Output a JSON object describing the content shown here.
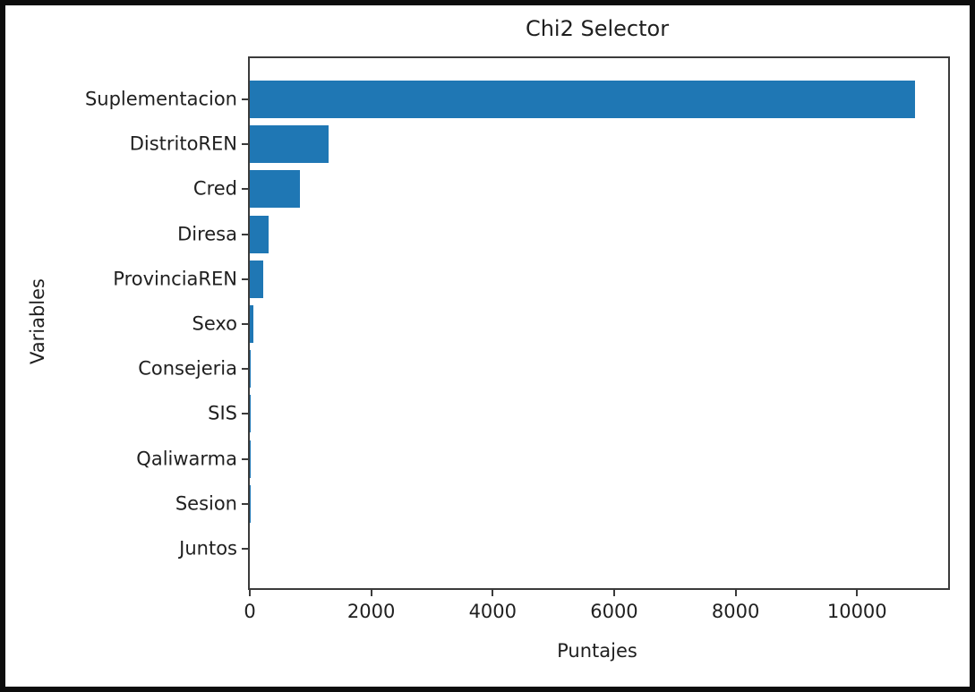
{
  "chart_data": {
    "type": "bar",
    "orientation": "horizontal",
    "title": "Chi2 Selector",
    "xlabel": "Puntajes",
    "ylabel": "Variables",
    "categories": [
      "Suplementacion",
      "DistritoREN",
      "Cred",
      "Diresa",
      "ProvinciaREN",
      "Sexo",
      "Consejeria",
      "SIS",
      "Qaliwarma",
      "Sesion",
      "Juntos"
    ],
    "values": [
      10950,
      1300,
      820,
      310,
      220,
      60,
      14,
      9,
      6,
      3,
      1
    ],
    "xticks": [
      0,
      2000,
      4000,
      6000,
      8000,
      10000
    ],
    "xlim": [
      0,
      11500
    ],
    "bar_color": "#1f77b4",
    "grid": false,
    "legend": false,
    "colors": {
      "spine": "#3b3b3b",
      "text": "#1f1f1f",
      "frame_border": "#0d0d0d",
      "background": "#ffffff"
    }
  }
}
